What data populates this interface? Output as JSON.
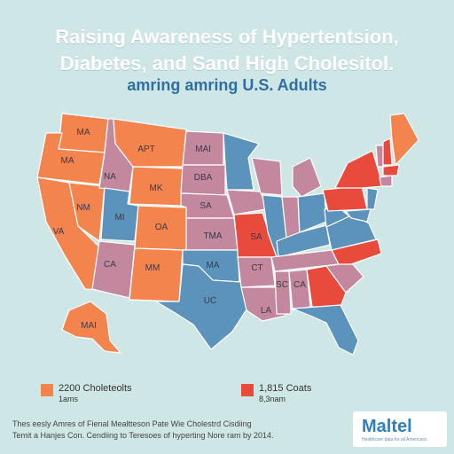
{
  "title_line1": "Raising Awareness of Hypertentsion,",
  "title_line2": "Diabetes, and Sand High Cholesitol.",
  "subtitle": "amring amring U.S. Adults",
  "colors": {
    "background": "#cfe6e7",
    "orange": "#f3844e",
    "mauve": "#c4889e",
    "blue": "#5c93bd",
    "red": "#e84a3c",
    "outline": "#ffffff"
  },
  "state_labels": {
    "wa": "MA",
    "or": "MA",
    "id": "NA",
    "mt": "APT",
    "nd": "MAI",
    "sd": "DBA",
    "wy": "MK",
    "nv": "NM",
    "ut": "MI",
    "co": "OA",
    "ca": "VA",
    "ne": "SA",
    "ks": "TMA",
    "mo": "SA",
    "az": "CA",
    "nm": "MM",
    "ok": "MA",
    "tx": "UC",
    "ar": "CT",
    "la": "LA",
    "ms": "SC",
    "al": "CA",
    "ak": "MAI"
  },
  "legend": [
    {
      "color": "orange",
      "line1": "2200 Choleteolts",
      "line2": "1ams"
    },
    {
      "color": "red",
      "line1": "1,815 Coats",
      "line2": "8,3nam"
    }
  ],
  "footer_line1": "Thes eesly Amres of Fienal Mealtteson Pate Wie Cholestrd Cisdiing",
  "footer_line2": "Temit a Hanjes Con. Cendiing to Teresoes of hyperting Nore ram by 2014.",
  "logo": {
    "name": "Maltel",
    "tagline": "Healthcare data for all Americans"
  }
}
